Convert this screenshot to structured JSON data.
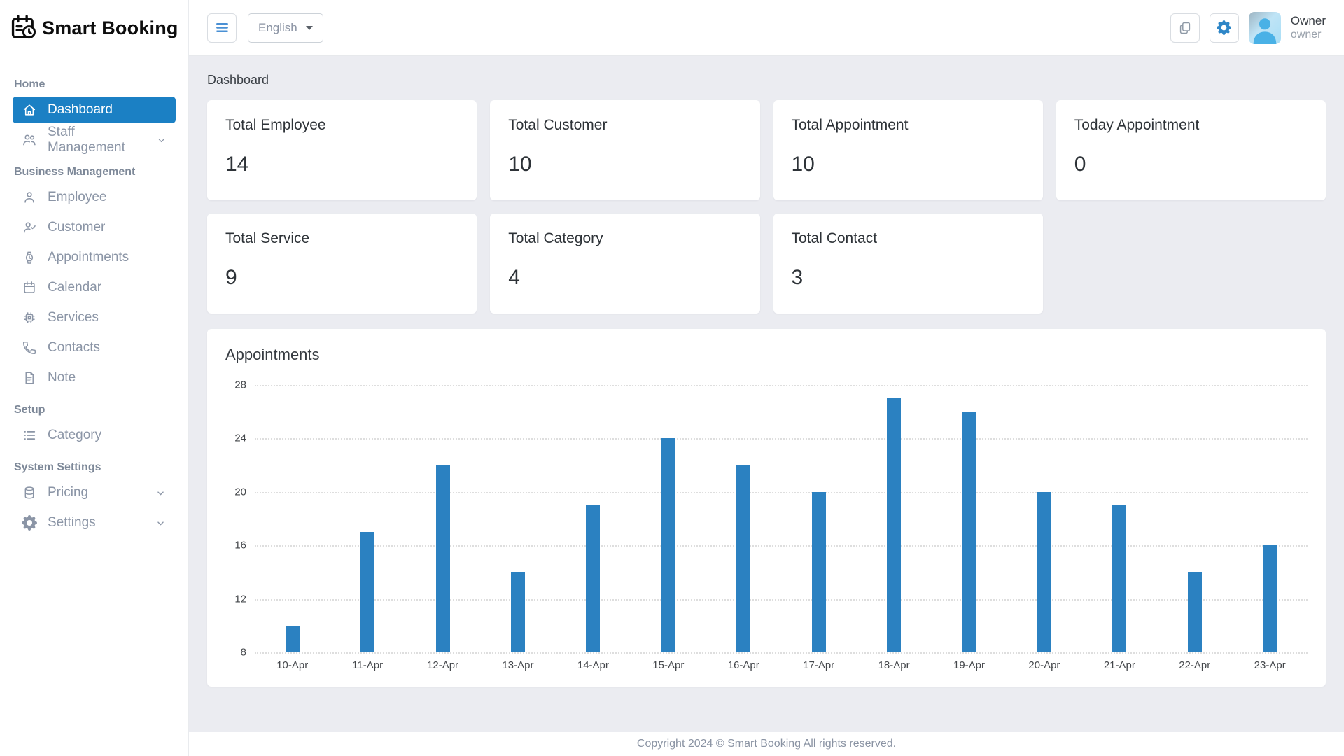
{
  "app": {
    "name": "Smart Booking"
  },
  "colors": {
    "accent": "#1b80c4",
    "bar": "#2b81c1",
    "sidebar_text": "#8b95a6",
    "main_bg": "#ebecf1",
    "gear": "#2e86c7"
  },
  "topbar": {
    "language": "English",
    "icons": [
      "menu-icon",
      "copy-icon",
      "gear-icon"
    ],
    "user": {
      "name": "Owner",
      "role": "owner"
    }
  },
  "sidebar": {
    "sections": [
      {
        "label": "Home",
        "items": [
          {
            "label": "Dashboard",
            "icon": "home-icon",
            "active": true
          },
          {
            "label": "Staff Management",
            "icon": "people-icon",
            "chevron": true
          }
        ]
      },
      {
        "label": "Business Management",
        "items": [
          {
            "label": "Employee",
            "icon": "person-icon"
          },
          {
            "label": "Customer",
            "icon": "person-check-icon"
          },
          {
            "label": "Appointments",
            "icon": "watch-icon"
          },
          {
            "label": "Calendar",
            "icon": "calendar-icon"
          },
          {
            "label": "Services",
            "icon": "cpu-icon"
          },
          {
            "label": "Contacts",
            "icon": "phone-icon"
          },
          {
            "label": "Note",
            "icon": "note-icon"
          }
        ]
      },
      {
        "label": "Setup",
        "items": [
          {
            "label": "Category",
            "icon": "list-icon"
          }
        ]
      },
      {
        "label": "System Settings",
        "items": [
          {
            "label": "Pricing",
            "icon": "database-icon",
            "chevron": true
          },
          {
            "label": "Settings",
            "icon": "gear-icon",
            "chevron": true
          }
        ]
      }
    ]
  },
  "page": {
    "title": "Dashboard"
  },
  "stats": [
    {
      "label": "Total Employee",
      "value": "14"
    },
    {
      "label": "Total Customer",
      "value": "10"
    },
    {
      "label": "Total Appointment",
      "value": "10"
    },
    {
      "label": "Today Appointment",
      "value": "0"
    },
    {
      "label": "Total Service",
      "value": "9"
    },
    {
      "label": "Total Category",
      "value": "4"
    },
    {
      "label": "Total Contact",
      "value": "3"
    }
  ],
  "chart_data": {
    "type": "bar",
    "title": "Appointments",
    "categories": [
      "10-Apr",
      "11-Apr",
      "12-Apr",
      "13-Apr",
      "14-Apr",
      "15-Apr",
      "16-Apr",
      "17-Apr",
      "18-Apr",
      "19-Apr",
      "20-Apr",
      "21-Apr",
      "22-Apr",
      "23-Apr"
    ],
    "values": [
      10,
      17,
      22,
      14,
      19,
      24,
      22,
      20,
      27,
      26,
      20,
      19,
      14,
      16
    ],
    "xlabel": "",
    "ylabel": "",
    "ylim": [
      8,
      28
    ],
    "yticks": [
      28,
      24,
      20,
      16,
      12,
      8
    ],
    "grid": "dotted-horizontal",
    "legend": "none",
    "bar_color": "#2b81c1"
  },
  "footer": {
    "text": "Copyright 2024 © Smart Booking All rights reserved."
  }
}
